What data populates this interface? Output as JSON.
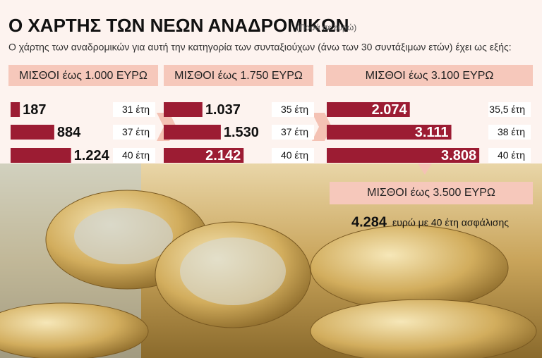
{
  "header": {
    "title": "Ο ΧΑΡΤΗΣ ΤΩΝ ΝΕΩΝ ΑΝΑΔΡΟΜΙΚΩΝ",
    "subtitle": "(Ποσά σε ευρώ)",
    "description": "Ο χάρτης των αναδρομικών για αυτή την κατηγορία των συνταξιούχων (άνω των 30 συντάξιμων ετών) έχει ως εξής:"
  },
  "chart_data": [
    {
      "type": "bar",
      "orientation": "horizontal",
      "title": "ΜΙΣΘΟΙ έως 1.000 ΕΥΡΩ",
      "categories": [
        "31 έτη",
        "37 έτη",
        "40 έτη"
      ],
      "values": [
        187,
        884,
        1224
      ],
      "value_labels": [
        "187",
        "884",
        "1.224"
      ],
      "color": "#9c1c33",
      "xlim": [
        0,
        2000
      ]
    },
    {
      "type": "bar",
      "orientation": "horizontal",
      "title": "ΜΙΣΘΟΙ έως 1.750 ΕΥΡΩ",
      "categories": [
        "35 έτη",
        "37 έτη",
        "40 έτη"
      ],
      "values": [
        1037,
        1530,
        2142
      ],
      "value_labels": [
        "1.037",
        "1.530",
        "2.142"
      ],
      "color": "#9c1c33",
      "xlim": [
        0,
        2800
      ]
    },
    {
      "type": "bar",
      "orientation": "horizontal",
      "title": "ΜΙΣΘΟΙ έως 3.100 ΕΥΡΩ",
      "categories": [
        "35,5 έτη",
        "38 έτη",
        "40 έτη"
      ],
      "values": [
        2074,
        3111,
        3808
      ],
      "value_labels": [
        "2.074",
        "3.111",
        "3.808"
      ],
      "color": "#9c1c33",
      "xlim": [
        0,
        4000
      ]
    }
  ],
  "note": {
    "title": "ΜΙΣΘΟΙ έως 3.500 ΕΥΡΩ",
    "amount": "4.284",
    "text": "ευρώ με 40 έτη ασφάλισης"
  }
}
